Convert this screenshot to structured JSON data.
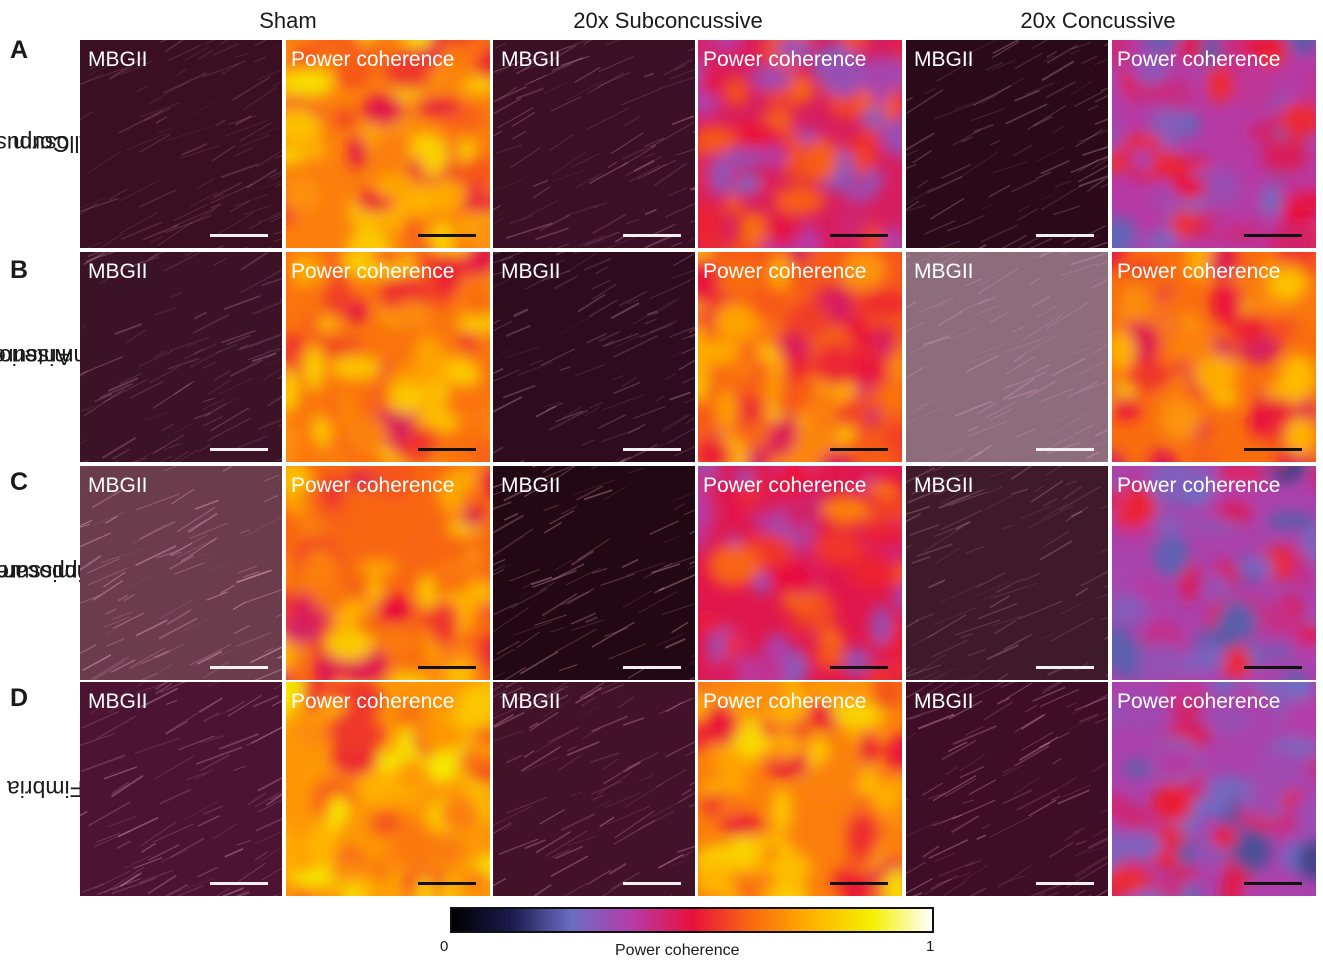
{
  "columns": [
    "Sham",
    "20x Subconcussive",
    "20x Concussive"
  ],
  "rows": [
    {
      "letter": "A",
      "label_lines": [
        "Corpus",
        "callosum"
      ]
    },
    {
      "letter": "B",
      "label_lines": [
        "Anterior",
        "Commissure"
      ]
    },
    {
      "letter": "C",
      "label_lines": [
        "Hippocampal",
        "commissure"
      ]
    },
    {
      "letter": "D",
      "label_lines": [
        "Fimbria"
      ]
    }
  ],
  "panel_labels": {
    "stain": "MBGII",
    "map": "Power coherence"
  },
  "colorbar": {
    "title": "Power coherence",
    "min": "0",
    "max": "1",
    "colormap": "inferno"
  },
  "colors": {
    "colormap_stops": [
      "#000000",
      "#1c1a4e",
      "#6b6ec4",
      "#b43ca8",
      "#e8103c",
      "#f96a10",
      "#ffb300",
      "#f4f000",
      "#ffffff"
    ],
    "micrograph_tint": "#6e2040"
  },
  "coherence_levels": {
    "Sham": [
      0.66,
      0.64,
      0.62,
      0.7
    ],
    "20x Subconcussive": [
      0.46,
      0.6,
      0.48,
      0.66
    ],
    "20x Concussive": [
      0.38,
      0.63,
      0.36,
      0.36
    ]
  }
}
